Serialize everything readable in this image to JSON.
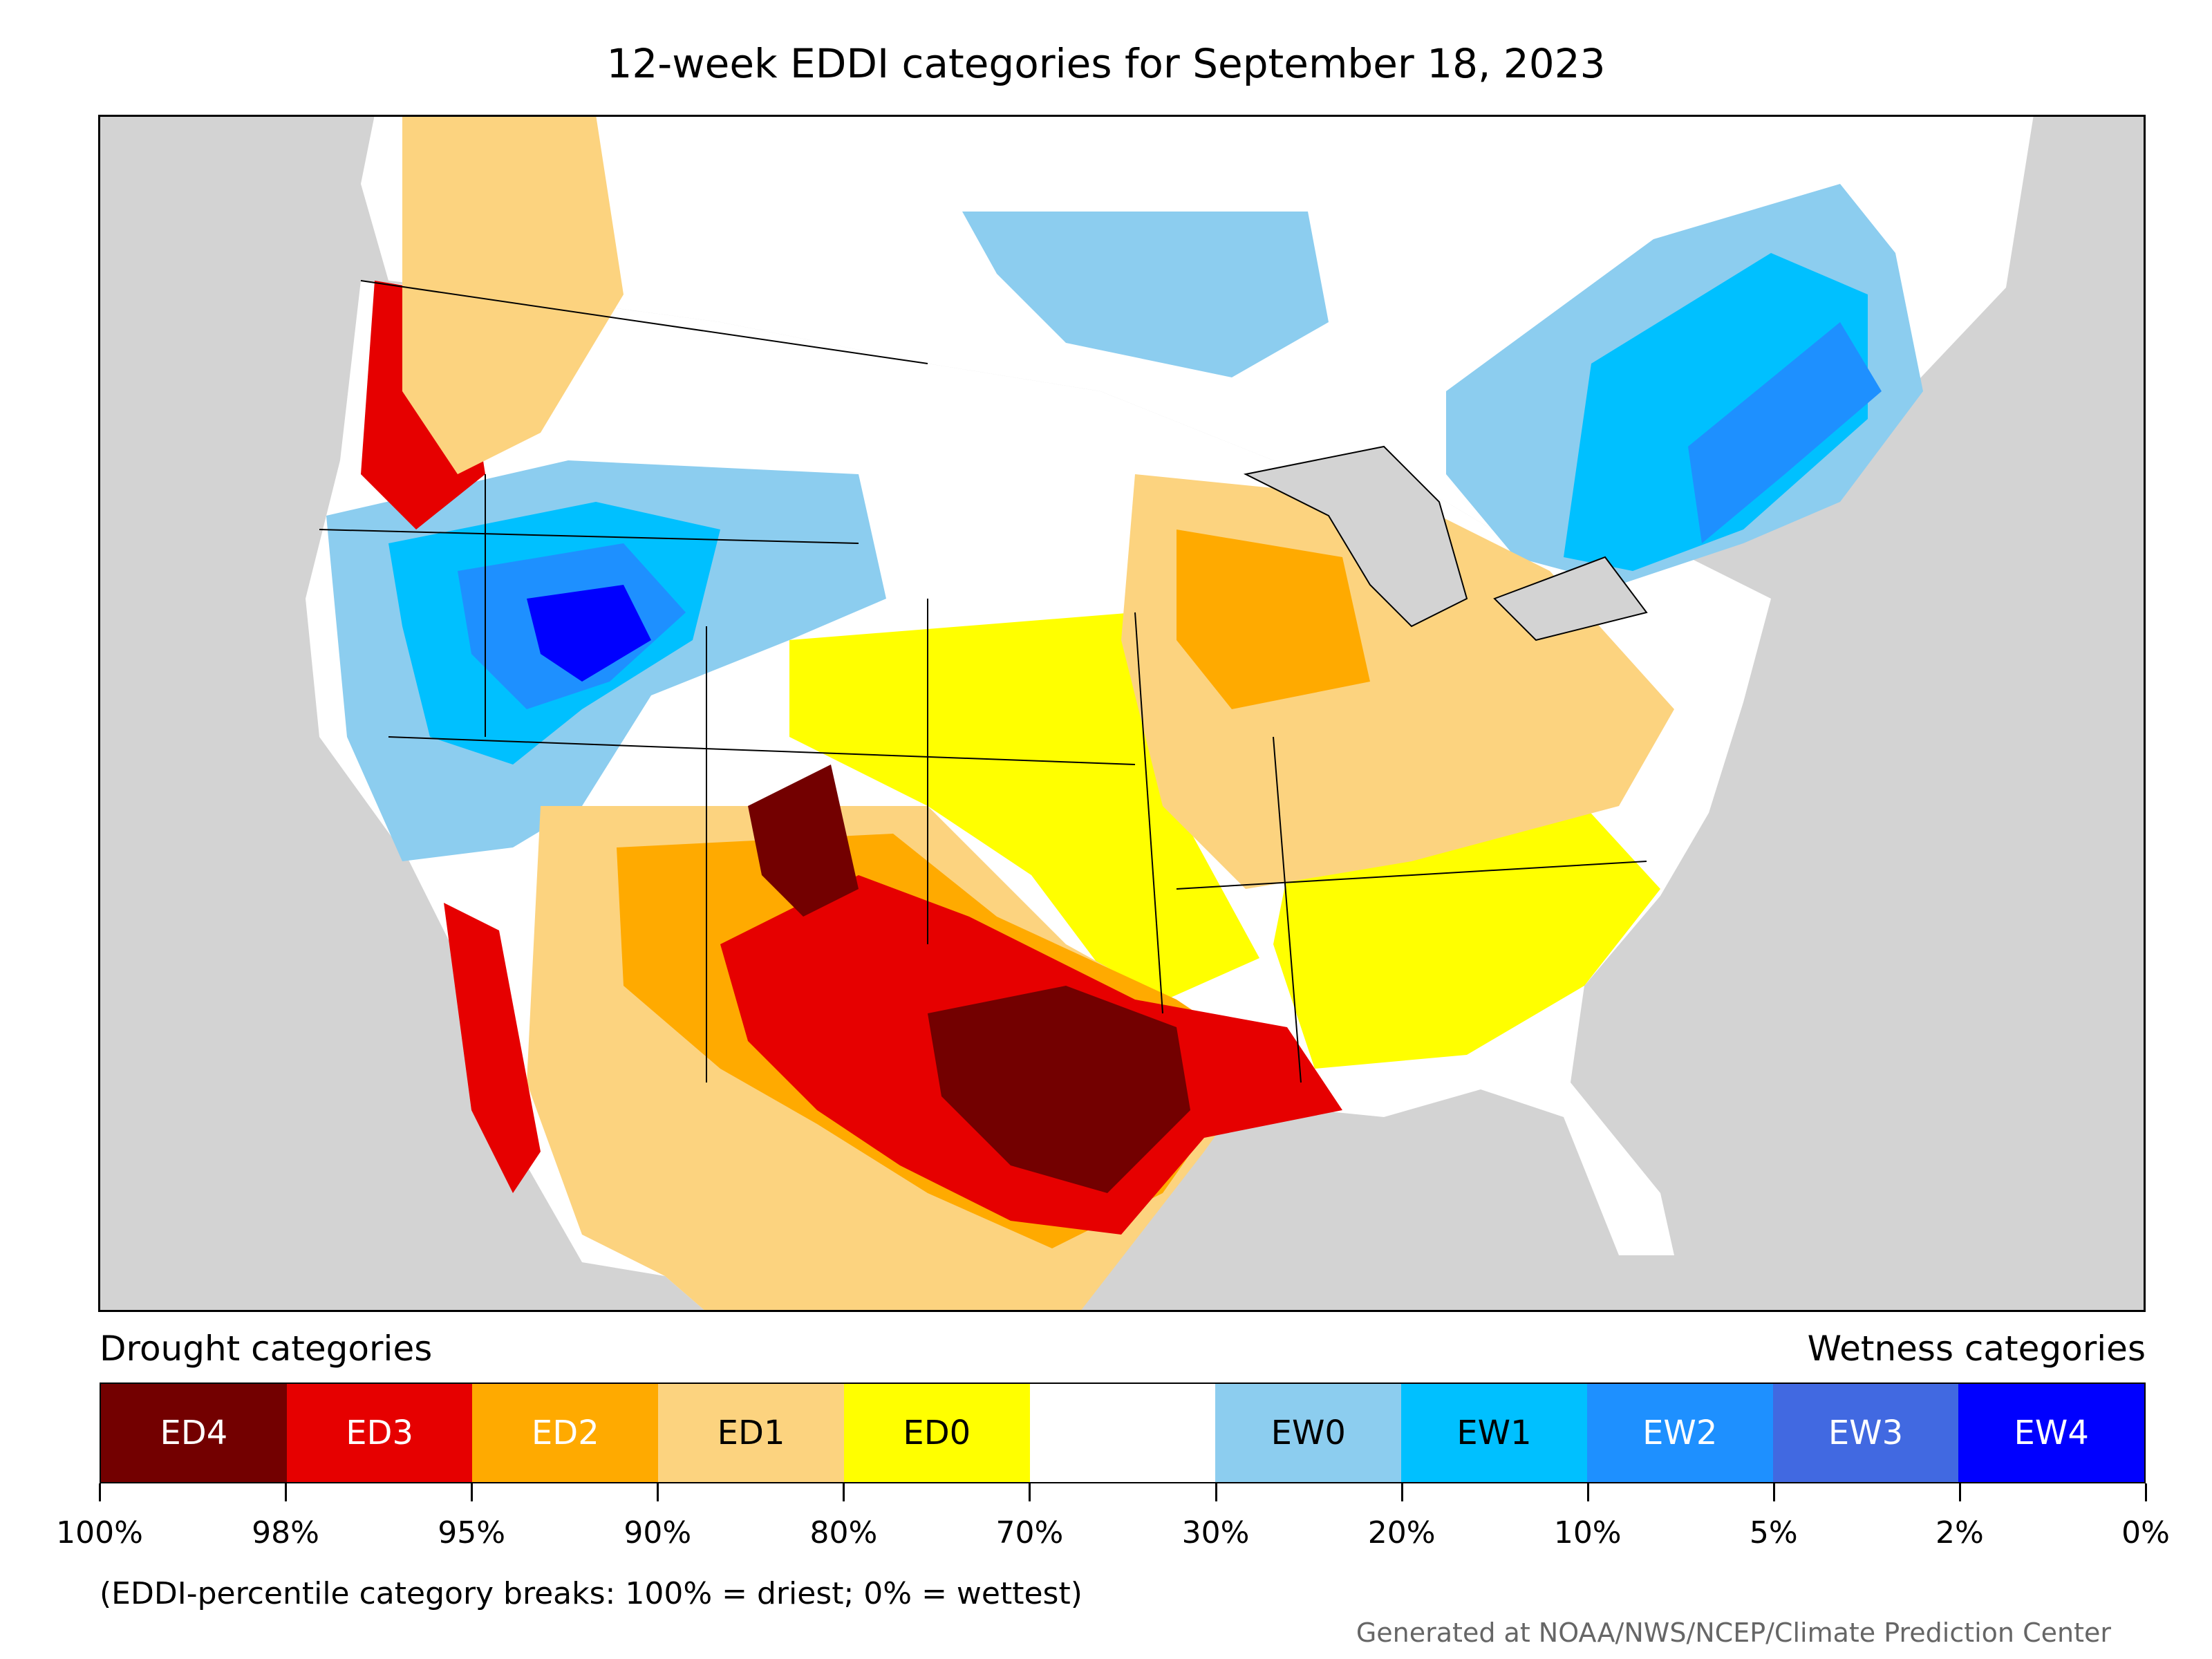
{
  "title": "12-week EDDI categories for September 18, 2023",
  "legend": {
    "drought_title": "Drought categories",
    "wetness_title": "Wetness categories",
    "categories": [
      {
        "label": "ED4",
        "color": "#730000",
        "text_color": "#ffffff"
      },
      {
        "label": "ED3",
        "color": "#e60000",
        "text_color": "#ffffff"
      },
      {
        "label": "ED2",
        "color": "#ffaa00",
        "text_color": "#ffffff"
      },
      {
        "label": "ED1",
        "color": "#fcd37f",
        "text_color": "#000000"
      },
      {
        "label": "ED0",
        "color": "#ffff00",
        "text_color": "#000000"
      },
      {
        "label": "",
        "color": "#ffffff",
        "text_color": "#000000"
      },
      {
        "label": "EW0",
        "color": "#8ccdef",
        "text_color": "#000000"
      },
      {
        "label": "EW1",
        "color": "#00c0ff",
        "text_color": "#000000"
      },
      {
        "label": "EW2",
        "color": "#1e90ff",
        "text_color": "#ffffff"
      },
      {
        "label": "EW3",
        "color": "#4169e1",
        "text_color": "#ffffff"
      },
      {
        "label": "EW4",
        "color": "#0000ff",
        "text_color": "#ffffff"
      }
    ],
    "breaks": [
      "100%",
      "98%",
      "95%",
      "90%",
      "80%",
      "70%",
      "30%",
      "20%",
      "10%",
      "5%",
      "2%",
      "0%"
    ]
  },
  "note": "(EDDI-percentile category breaks: 100% = driest; 0% = wettest)",
  "credit": "Generated at NOAA/NWS/NCEP/Climate Prediction Center",
  "colors": {
    "background_land": "#d3d3d3",
    "ocean": "#d3d3d3",
    "boundary": "#000000"
  }
}
